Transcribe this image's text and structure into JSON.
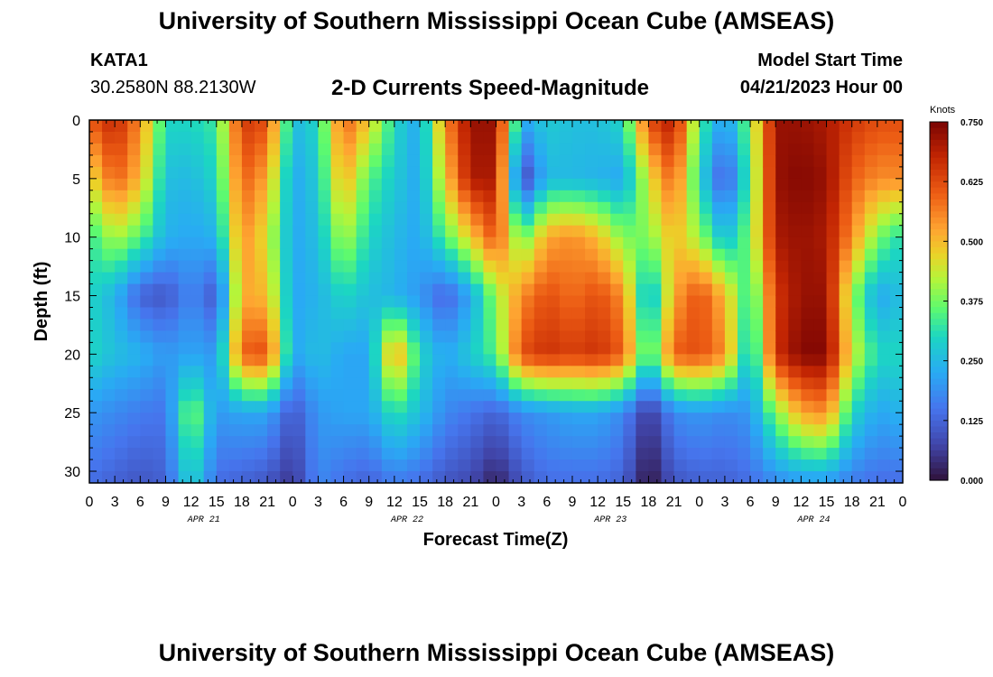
{
  "header": {
    "title": "University of Southern Mississippi Ocean Cube (AMSEAS)",
    "station_id": "KATA1",
    "station_coords": "30.2580N  88.2130W",
    "chart_title": "2-D Currents Speed-Magnitude",
    "model_start_label": "Model Start Time",
    "model_start_value": "04/21/2023 Hour 00"
  },
  "footer": {
    "title": "University of Southern Mississippi Ocean Cube (AMSEAS)"
  },
  "chart_data": {
    "type": "heatmap",
    "title": "2-D Currents Speed-Magnitude",
    "xlabel": "Forecast Time(Z)",
    "ylabel": "Depth (ft)",
    "x_ticks": [
      "0",
      "3",
      "6",
      "9",
      "12",
      "15",
      "18",
      "21",
      "0",
      "3",
      "6",
      "9",
      "12",
      "15",
      "18",
      "21",
      "0",
      "3",
      "6",
      "9",
      "12",
      "15",
      "18",
      "21",
      "0",
      "3",
      "6",
      "9",
      "12",
      "15",
      "18",
      "21",
      "0"
    ],
    "day_labels": [
      "APR 21",
      "APR 22",
      "APR 23",
      "APR 24"
    ],
    "y_ticks": [
      "0",
      "5",
      "10",
      "15",
      "20",
      "25",
      "30"
    ],
    "xlim": [
      0,
      96
    ],
    "ylim": [
      0,
      31
    ],
    "colorbar": {
      "unit": "Knots",
      "ticks": [
        "0.750",
        "0.625",
        "0.500",
        "0.375",
        "0.250",
        "0.125",
        "0.000"
      ],
      "range": [
        0,
        0.75
      ]
    },
    "hours": [
      0,
      3,
      6,
      9,
      12,
      15,
      18,
      21,
      24,
      27,
      30,
      33,
      36,
      39,
      42,
      45,
      48,
      51,
      54,
      57,
      60,
      63,
      66,
      69,
      72,
      75,
      78,
      81,
      84,
      87,
      90,
      93,
      96
    ],
    "depths": [
      0,
      5,
      10,
      15,
      20,
      25,
      31
    ],
    "values": [
      [
        0.6,
        0.68,
        0.55,
        0.3,
        0.3,
        0.33,
        0.65,
        0.62,
        0.25,
        0.3,
        0.6,
        0.48,
        0.3,
        0.22,
        0.55,
        0.72,
        0.72,
        0.22,
        0.28,
        0.26,
        0.26,
        0.3,
        0.62,
        0.7,
        0.35,
        0.2,
        0.38,
        0.72,
        0.72,
        0.7,
        0.65,
        0.62,
        0.62
      ],
      [
        0.45,
        0.6,
        0.5,
        0.26,
        0.25,
        0.3,
        0.6,
        0.52,
        0.22,
        0.28,
        0.52,
        0.35,
        0.28,
        0.22,
        0.48,
        0.7,
        0.7,
        0.06,
        0.25,
        0.25,
        0.24,
        0.22,
        0.45,
        0.6,
        0.3,
        0.1,
        0.35,
        0.72,
        0.74,
        0.72,
        0.6,
        0.55,
        0.55
      ],
      [
        0.32,
        0.42,
        0.35,
        0.24,
        0.22,
        0.24,
        0.55,
        0.45,
        0.22,
        0.26,
        0.42,
        0.3,
        0.25,
        0.22,
        0.35,
        0.48,
        0.62,
        0.35,
        0.52,
        0.55,
        0.5,
        0.38,
        0.38,
        0.5,
        0.4,
        0.25,
        0.38,
        0.7,
        0.72,
        0.7,
        0.55,
        0.38,
        0.3
      ],
      [
        0.3,
        0.24,
        0.12,
        0.1,
        0.18,
        0.1,
        0.52,
        0.5,
        0.22,
        0.24,
        0.3,
        0.26,
        0.24,
        0.2,
        0.12,
        0.22,
        0.4,
        0.55,
        0.62,
        0.58,
        0.62,
        0.55,
        0.22,
        0.52,
        0.62,
        0.5,
        0.3,
        0.65,
        0.72,
        0.72,
        0.4,
        0.22,
        0.26
      ],
      [
        0.3,
        0.26,
        0.24,
        0.2,
        0.22,
        0.2,
        0.6,
        0.62,
        0.22,
        0.26,
        0.22,
        0.22,
        0.55,
        0.3,
        0.22,
        0.28,
        0.35,
        0.62,
        0.66,
        0.64,
        0.66,
        0.6,
        0.3,
        0.6,
        0.62,
        0.55,
        0.24,
        0.66,
        0.74,
        0.74,
        0.45,
        0.3,
        0.3
      ],
      [
        0.2,
        0.18,
        0.16,
        0.15,
        0.4,
        0.2,
        0.22,
        0.22,
        0.1,
        0.2,
        0.22,
        0.22,
        0.32,
        0.26,
        0.18,
        0.15,
        0.12,
        0.18,
        0.2,
        0.22,
        0.22,
        0.18,
        0.05,
        0.18,
        0.2,
        0.18,
        0.2,
        0.38,
        0.52,
        0.55,
        0.3,
        0.22,
        0.24
      ],
      [
        0.14,
        0.12,
        0.1,
        0.12,
        0.3,
        0.14,
        0.12,
        0.1,
        0.05,
        0.18,
        0.14,
        0.12,
        0.16,
        0.14,
        0.1,
        0.08,
        0.02,
        0.1,
        0.14,
        0.14,
        0.14,
        0.12,
        0.0,
        0.1,
        0.12,
        0.12,
        0.14,
        0.18,
        0.2,
        0.2,
        0.16,
        0.14,
        0.14
      ]
    ]
  }
}
